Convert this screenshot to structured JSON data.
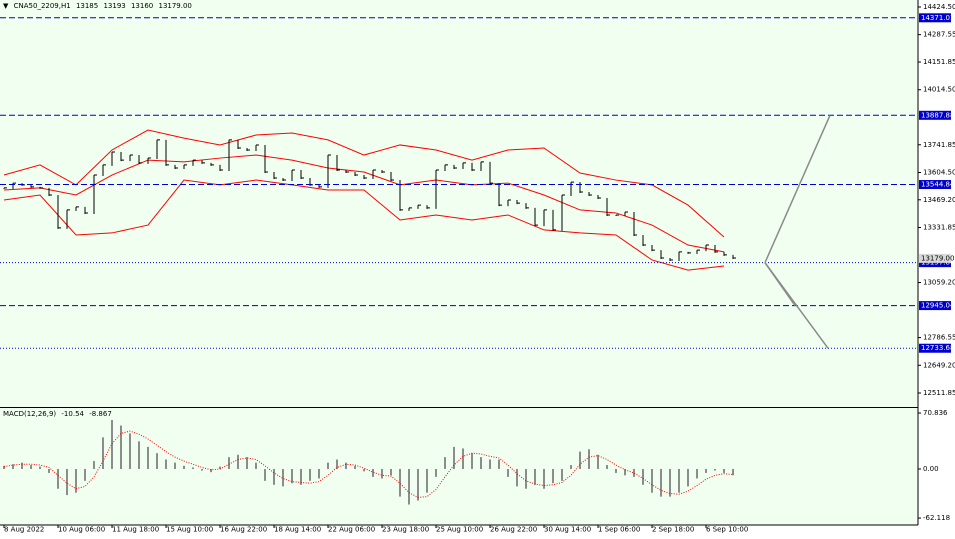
{
  "chart_data": [
    {
      "type": "line",
      "symbol": "CNA50_2209,H1",
      "ohlc": [
        13185.0,
        13193.0,
        13160.0,
        {
          "value": 13179,
          "label": "13179.00"
        }
      ],
      "xticks": [
        {
          "value": 0,
          "label": "8 Aug 2022"
        },
        {
          "value": 6,
          "label": "10 Aug 06:00"
        },
        {
          "value": 12,
          "label": "11 Aug 18:00"
        },
        {
          "value": 18,
          "label": "15 Aug 10:00"
        },
        {
          "value": 24,
          "label": "16 Aug 22:00"
        },
        {
          "value": 30,
          "label": "18 Aug 14:00"
        },
        {
          "value": 36,
          "label": "22 Aug 06:00"
        },
        {
          "value": 42,
          "label": "23 Aug 18:00"
        },
        {
          "value": 48,
          "label": "25 Aug 10:00"
        },
        {
          "value": 54,
          "label": "26 Aug 22:00"
        },
        {
          "value": 60,
          "label": "30 Aug 14:00"
        },
        {
          "value": 66,
          "label": "1 Sep 06:00"
        },
        {
          "value": 72,
          "label": "2 Sep 18:00"
        },
        {
          "value": 78,
          "label": "6 Sep 10:00"
        }
      ],
      "ylim": [
        12442.5,
        14459.2
      ],
      "yticks": [
        {
          "value": 14424.5,
          "label": "14424.50"
        },
        14287.55,
        14151.85,
        {
          "value": 14014.5,
          "label": "14014.50"
        },
        13741.85,
        {
          "value": 13604.5,
          "label": "13604.50"
        },
        {
          "value": 13469.2,
          "label": "13469.20"
        },
        13331.85,
        {
          "value": 13059.2,
          "label": "13059.20"
        },
        12786.55,
        {
          "value": 12649.2,
          "label": "12649.20"
        },
        12511.85
      ],
      "color": "#000000",
      "values": [
        13528,
        13552,
        13543,
        13533,
        13528,
        13493,
        13330,
        13419,
        13434,
        13404,
        13592,
        13642,
        13706,
        13666,
        13691,
        13652,
        13676,
        13766,
        13642,
        13627,
        13642,
        13666,
        13652,
        13642,
        13617,
        13766,
        13726,
        13716,
        13741,
        13607,
        13577,
        13567,
        13617,
        13577,
        13543,
        13533,
        13691,
        13617,
        13607,
        13592,
        13577,
        13617,
        13607,
        13567,
        13419,
        13429,
        13443,
        13429,
        13617,
        13642,
        13627,
        13652,
        13617,
        13657,
        13552,
        13443,
        13468,
        13453,
        13429,
        13344,
        13419,
        13320,
        13493,
        13557,
        13508,
        13493,
        13478,
        13394,
        13394,
        13409,
        13295,
        13245,
        13220,
        13181,
        13171,
        13211,
        13206,
        13220,
        13245,
        13211,
        13196,
        13181
      ],
      "bands_x": [
        0,
        4,
        8,
        12,
        16,
        20,
        24,
        28,
        32,
        36,
        40,
        44,
        48,
        52,
        56,
        60,
        64,
        68,
        72,
        76,
        80
      ],
      "bands": [
        {
          "color": "#ff0000",
          "values": [
            13592,
            13642,
            13543,
            13716,
            13815,
            13775,
            13741,
            13790,
            13800,
            13766,
            13691,
            13741,
            13716,
            13666,
            13716,
            13726,
            13602,
            13567,
            13543,
            13443,
            13285
          ]
        },
        {
          "color": "#ff0000",
          "values": [
            13518,
            13528,
            13493,
            13592,
            13666,
            13657,
            13676,
            13691,
            13666,
            13627,
            13607,
            13543,
            13567,
            13543,
            13552,
            13493,
            13419,
            13404,
            13344,
            13245,
            13211
          ]
        },
        {
          "color": "#ff0000",
          "values": [
            13468,
            13493,
            13295,
            13305,
            13344,
            13567,
            13543,
            13567,
            13543,
            13518,
            13518,
            13369,
            13394,
            13369,
            13394,
            13320,
            13305,
            13295,
            13171,
            13121,
            13141
          ]
        }
      ],
      "levels": [
        {
          "value": 14371.01,
          "style": "dashed"
        },
        {
          "value": 13887.88,
          "style": "dashed"
        },
        {
          "value": 13544.84,
          "style": "dashed"
        },
        {
          "value": 13157.84,
          "style": "dotted"
        },
        {
          "value": 12945.04,
          "style": "dashed"
        },
        {
          "value": 12733.68,
          "style": "dotted"
        }
      ],
      "level_color": "#0000cc"
    },
    {
      "type": "macd",
      "title": "MACD(12,26,9)",
      "readings": [
        -10.54,
        -8.867
      ],
      "ylim": [
        -70.9,
        77.2
      ],
      "yticks": [
        70.836,
        {
          "value": 0,
          "label": "0.00"
        },
        -62.118
      ],
      "color": "#8c8c8c",
      "signal_color": "#ff0000",
      "values": [
        4,
        6,
        8,
        5,
        3,
        -5,
        -25,
        -33,
        -30,
        -15,
        10,
        40,
        62,
        55,
        45,
        35,
        28,
        20,
        12,
        8,
        4,
        2,
        -2,
        -4,
        3,
        15,
        18,
        15,
        8,
        -15,
        -20,
        -22,
        -18,
        -20,
        -15,
        -12,
        8,
        12,
        8,
        4,
        -3,
        -10,
        -12,
        -8,
        -35,
        -45,
        -40,
        -30,
        -10,
        15,
        28,
        26,
        20,
        15,
        12,
        12,
        -10,
        -22,
        -25,
        -20,
        -25,
        -18,
        -15,
        5,
        22,
        25,
        18,
        5,
        -5,
        -8,
        -10,
        -20,
        -30,
        -35,
        -35,
        -30,
        -22,
        -12,
        -5,
        -2,
        -5,
        -8
      ],
      "signal": [
        3,
        5,
        6,
        6,
        5,
        2,
        -8,
        -18,
        -25,
        -22,
        -10,
        10,
        32,
        45,
        48,
        44,
        38,
        30,
        22,
        15,
        10,
        6,
        2,
        -1,
        0,
        6,
        12,
        14,
        12,
        4,
        -5,
        -12,
        -16,
        -17,
        -18,
        -16,
        -8,
        2,
        6,
        5,
        1,
        -4,
        -8,
        -9,
        -18,
        -30,
        -36,
        -35,
        -26,
        -10,
        5,
        16,
        20,
        19,
        16,
        14,
        5,
        -6,
        -15,
        -19,
        -21,
        -20,
        -17,
        -8,
        6,
        15,
        17,
        12,
        5,
        -1,
        -5,
        -12,
        -20,
        -27,
        -31,
        -32,
        -28,
        -21,
        -13,
        -8,
        -6,
        -7
      ]
    }
  ]
}
